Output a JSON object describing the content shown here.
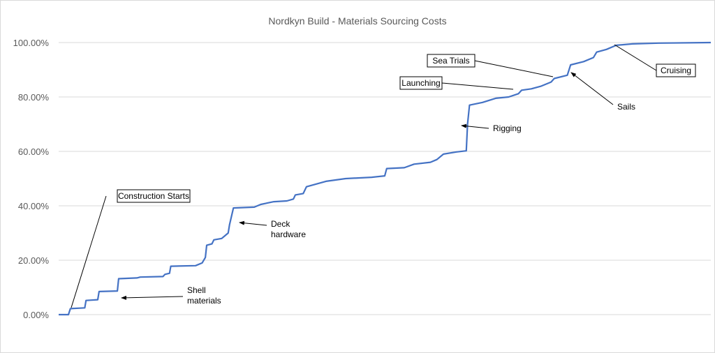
{
  "chart_data": {
    "type": "line",
    "title": "Nordkyn Build - Materials Sourcing Costs",
    "xlabel": "",
    "ylabel": "",
    "ylim": [
      0,
      1
    ],
    "y_ticks": [
      {
        "value": 0.0,
        "label": "0.00%"
      },
      {
        "value": 0.2,
        "label": "20.00%"
      },
      {
        "value": 0.4,
        "label": "40.00%"
      },
      {
        "value": 0.6,
        "label": "60.00%"
      },
      {
        "value": 0.8,
        "label": "80.00%"
      },
      {
        "value": 1.0,
        "label": "100.00%"
      }
    ],
    "grid": true,
    "legend": "none",
    "series": [
      {
        "color": "#4472c4",
        "points": [
          [
            0.0,
            0.0
          ],
          [
            1.5,
            0.0
          ],
          [
            1.8,
            0.022
          ],
          [
            4.0,
            0.025
          ],
          [
            4.2,
            0.052
          ],
          [
            6.0,
            0.055
          ],
          [
            6.2,
            0.085
          ],
          [
            9.0,
            0.087
          ],
          [
            9.2,
            0.132
          ],
          [
            12.0,
            0.135
          ],
          [
            12.5,
            0.138
          ],
          [
            16.0,
            0.14
          ],
          [
            16.3,
            0.148
          ],
          [
            17.0,
            0.152
          ],
          [
            17.2,
            0.178
          ],
          [
            21.0,
            0.18
          ],
          [
            22.0,
            0.19
          ],
          [
            22.5,
            0.21
          ],
          [
            22.7,
            0.255
          ],
          [
            23.5,
            0.26
          ],
          [
            23.8,
            0.275
          ],
          [
            25.0,
            0.28
          ],
          [
            25.5,
            0.29
          ],
          [
            26.0,
            0.3
          ],
          [
            26.2,
            0.33
          ],
          [
            26.8,
            0.392
          ],
          [
            30.0,
            0.395
          ],
          [
            31.0,
            0.405
          ],
          [
            33.0,
            0.415
          ],
          [
            35.0,
            0.418
          ],
          [
            36.0,
            0.425
          ],
          [
            36.3,
            0.44
          ],
          [
            37.5,
            0.445
          ],
          [
            38.0,
            0.47
          ],
          [
            39.5,
            0.48
          ],
          [
            41.0,
            0.49
          ],
          [
            44.0,
            0.5
          ],
          [
            48.0,
            0.505
          ],
          [
            50.0,
            0.51
          ],
          [
            50.3,
            0.537
          ],
          [
            53.0,
            0.54
          ],
          [
            54.5,
            0.553
          ],
          [
            57.0,
            0.56
          ],
          [
            58.0,
            0.57
          ],
          [
            59.0,
            0.59
          ],
          [
            61.0,
            0.598
          ],
          [
            62.5,
            0.602
          ],
          [
            62.7,
            0.7
          ],
          [
            63.0,
            0.77
          ],
          [
            65.0,
            0.78
          ],
          [
            67.0,
            0.795
          ],
          [
            69.0,
            0.8
          ],
          [
            70.5,
            0.812
          ],
          [
            71.0,
            0.825
          ],
          [
            72.5,
            0.83
          ],
          [
            74.0,
            0.84
          ],
          [
            75.5,
            0.855
          ],
          [
            76.0,
            0.868
          ],
          [
            78.0,
            0.88
          ],
          [
            78.5,
            0.918
          ],
          [
            80.5,
            0.93
          ],
          [
            82.0,
            0.945
          ],
          [
            82.5,
            0.965
          ],
          [
            84.0,
            0.975
          ],
          [
            85.5,
            0.99
          ],
          [
            88.0,
            0.995
          ],
          [
            92.0,
            0.998
          ],
          [
            100.0,
            1.0
          ]
        ]
      }
    ],
    "annotations": [
      {
        "label": "Construction Starts",
        "boxed": true
      },
      {
        "label": "Shell\nmaterials",
        "boxed": false
      },
      {
        "label": "Deck\nhardware",
        "boxed": false
      },
      {
        "label": "Rigging",
        "boxed": false
      },
      {
        "label": "Launching",
        "boxed": true
      },
      {
        "label": "Sea Trials",
        "boxed": true
      },
      {
        "label": "Sails",
        "boxed": false
      },
      {
        "label": "Cruising",
        "boxed": true
      }
    ]
  }
}
